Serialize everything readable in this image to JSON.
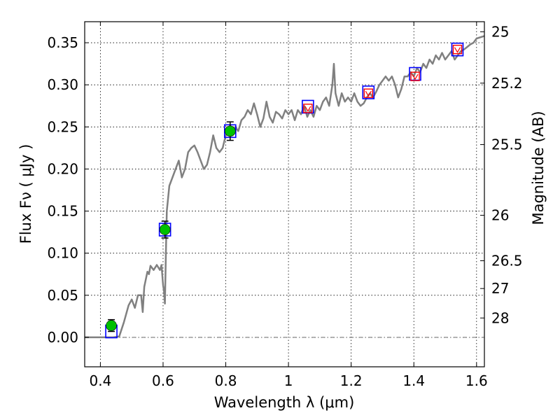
{
  "chart_data": {
    "type": "line",
    "title": "",
    "xlabel": "Wavelength  λ (μm)",
    "ylabel": "Flux  Fν  ( μJy )",
    "y2label": "Magnitude (AB)",
    "xlim": [
      0.35,
      1.625
    ],
    "ylim": [
      -0.035,
      0.375
    ],
    "grid": true,
    "x_ticks": [
      0.4,
      0.6,
      0.8,
      1.0,
      1.2,
      1.4,
      1.6
    ],
    "x_tick_labels": [
      "0.4",
      "0.6",
      "0.8",
      "1",
      "1.2",
      "1.4",
      "1.6"
    ],
    "y_ticks": [
      0.0,
      0.05,
      0.1,
      0.15,
      0.2,
      0.25,
      0.3,
      0.35
    ],
    "y_tick_labels": [
      "0.00",
      "0.05",
      "0.10",
      "0.15",
      "0.20",
      "0.25",
      "0.30",
      "0.35"
    ],
    "y2_ticks": [
      {
        "label": "25",
        "flux": 0.363
      },
      {
        "label": "25.2",
        "flux": 0.302
      },
      {
        "label": "25.5",
        "flux": 0.229
      },
      {
        "label": "26",
        "flux": 0.145
      },
      {
        "label": "26.5",
        "flux": 0.091
      },
      {
        "label": "27",
        "flux": 0.058
      },
      {
        "label": "28",
        "flux": 0.023
      }
    ],
    "series": [
      {
        "kind": "model_spectrum",
        "color": "#808080",
        "points": [
          [
            0.35,
            0.0
          ],
          [
            0.44,
            0.0
          ],
          [
            0.46,
            0.001
          ],
          [
            0.475,
            0.018
          ],
          [
            0.49,
            0.038
          ],
          [
            0.5,
            0.045
          ],
          [
            0.51,
            0.035
          ],
          [
            0.52,
            0.05
          ],
          [
            0.53,
            0.05
          ],
          [
            0.535,
            0.03
          ],
          [
            0.54,
            0.06
          ],
          [
            0.55,
            0.078
          ],
          [
            0.555,
            0.075
          ],
          [
            0.56,
            0.085
          ],
          [
            0.57,
            0.08
          ],
          [
            0.58,
            0.086
          ],
          [
            0.585,
            0.083
          ],
          [
            0.59,
            0.08
          ],
          [
            0.595,
            0.086
          ],
          [
            0.6,
            0.062
          ],
          [
            0.603,
            0.055
          ],
          [
            0.606,
            0.04
          ],
          [
            0.609,
            0.1
          ],
          [
            0.612,
            0.15
          ],
          [
            0.62,
            0.18
          ],
          [
            0.63,
            0.19
          ],
          [
            0.64,
            0.2
          ],
          [
            0.65,
            0.21
          ],
          [
            0.66,
            0.19
          ],
          [
            0.67,
            0.2
          ],
          [
            0.68,
            0.22
          ],
          [
            0.69,
            0.225
          ],
          [
            0.7,
            0.228
          ],
          [
            0.71,
            0.22
          ],
          [
            0.72,
            0.21
          ],
          [
            0.73,
            0.2
          ],
          [
            0.74,
            0.205
          ],
          [
            0.75,
            0.22
          ],
          [
            0.76,
            0.24
          ],
          [
            0.77,
            0.225
          ],
          [
            0.78,
            0.22
          ],
          [
            0.79,
            0.225
          ],
          [
            0.8,
            0.24
          ],
          [
            0.81,
            0.245
          ],
          [
            0.82,
            0.24
          ],
          [
            0.83,
            0.25
          ],
          [
            0.84,
            0.245
          ],
          [
            0.85,
            0.258
          ],
          [
            0.86,
            0.262
          ],
          [
            0.87,
            0.27
          ],
          [
            0.88,
            0.265
          ],
          [
            0.89,
            0.278
          ],
          [
            0.9,
            0.265
          ],
          [
            0.91,
            0.25
          ],
          [
            0.92,
            0.26
          ],
          [
            0.93,
            0.28
          ],
          [
            0.94,
            0.262
          ],
          [
            0.95,
            0.255
          ],
          [
            0.96,
            0.268
          ],
          [
            0.97,
            0.265
          ],
          [
            0.98,
            0.26
          ],
          [
            0.99,
            0.27
          ],
          [
            1.0,
            0.265
          ],
          [
            1.01,
            0.27
          ],
          [
            1.02,
            0.258
          ],
          [
            1.03,
            0.27
          ],
          [
            1.04,
            0.265
          ],
          [
            1.05,
            0.275
          ],
          [
            1.06,
            0.262
          ],
          [
            1.07,
            0.27
          ],
          [
            1.08,
            0.262
          ],
          [
            1.09,
            0.275
          ],
          [
            1.1,
            0.27
          ],
          [
            1.11,
            0.28
          ],
          [
            1.12,
            0.285
          ],
          [
            1.13,
            0.275
          ],
          [
            1.14,
            0.3
          ],
          [
            1.145,
            0.325
          ],
          [
            1.15,
            0.29
          ],
          [
            1.16,
            0.275
          ],
          [
            1.17,
            0.29
          ],
          [
            1.18,
            0.28
          ],
          [
            1.19,
            0.285
          ],
          [
            1.2,
            0.28
          ],
          [
            1.21,
            0.29
          ],
          [
            1.22,
            0.28
          ],
          [
            1.23,
            0.275
          ],
          [
            1.24,
            0.278
          ],
          [
            1.25,
            0.285
          ],
          [
            1.26,
            0.29
          ],
          [
            1.27,
            0.285
          ],
          [
            1.28,
            0.292
          ],
          [
            1.29,
            0.3
          ],
          [
            1.3,
            0.305
          ],
          [
            1.31,
            0.31
          ],
          [
            1.32,
            0.305
          ],
          [
            1.33,
            0.31
          ],
          [
            1.34,
            0.3
          ],
          [
            1.35,
            0.285
          ],
          [
            1.36,
            0.295
          ],
          [
            1.37,
            0.31
          ],
          [
            1.38,
            0.31
          ],
          [
            1.39,
            0.315
          ],
          [
            1.4,
            0.31
          ],
          [
            1.41,
            0.32
          ],
          [
            1.42,
            0.315
          ],
          [
            1.43,
            0.325
          ],
          [
            1.44,
            0.32
          ],
          [
            1.45,
            0.33
          ],
          [
            1.46,
            0.325
          ],
          [
            1.47,
            0.335
          ],
          [
            1.48,
            0.33
          ],
          [
            1.49,
            0.338
          ],
          [
            1.5,
            0.33
          ],
          [
            1.51,
            0.335
          ],
          [
            1.52,
            0.34
          ],
          [
            1.53,
            0.33
          ],
          [
            1.54,
            0.335
          ],
          [
            1.55,
            0.34
          ],
          [
            1.56,
            0.342
          ],
          [
            1.57,
            0.345
          ],
          [
            1.58,
            0.348
          ],
          [
            1.59,
            0.35
          ],
          [
            1.6,
            0.355
          ],
          [
            1.625,
            0.358
          ]
        ]
      },
      {
        "kind": "model_photometry",
        "marker": "open_square",
        "color": "#0000ff",
        "points": [
          [
            0.435,
            0.007
          ],
          [
            0.606,
            0.128
          ],
          [
            0.814,
            0.245
          ],
          [
            1.062,
            0.274
          ],
          [
            1.255,
            0.291
          ],
          [
            1.404,
            0.313
          ],
          [
            1.539,
            0.342
          ]
        ]
      },
      {
        "kind": "observed_photometry",
        "marker": "filled_circle",
        "color": "#00c000",
        "points": [
          {
            "x": 0.435,
            "y": 0.014,
            "err": 0.007
          },
          {
            "x": 0.606,
            "y": 0.128,
            "err": 0.01
          },
          {
            "x": 0.814,
            "y": 0.245,
            "err": 0.011
          }
        ]
      },
      {
        "kind": "upper_limits",
        "marker": "open_square_with_down_arrow",
        "color": "#ff0000",
        "points": [
          [
            1.062,
            0.272
          ],
          [
            1.255,
            0.29
          ],
          [
            1.404,
            0.31
          ],
          [
            1.539,
            0.342
          ]
        ]
      }
    ]
  }
}
